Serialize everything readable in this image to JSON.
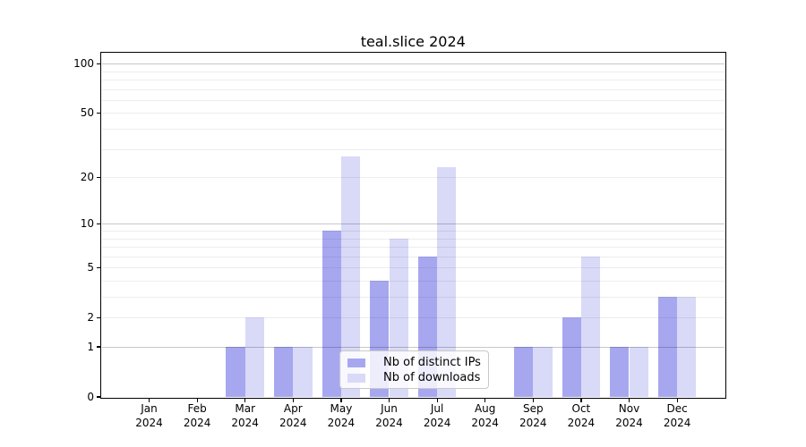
{
  "chart_data": {
    "type": "bar",
    "title": "teal.slice 2024",
    "categories": [
      "Jan",
      "Feb",
      "Mar",
      "Apr",
      "May",
      "Jun",
      "Jul",
      "Aug",
      "Sep",
      "Oct",
      "Nov",
      "Dec"
    ],
    "category_year": "2024",
    "series": [
      {
        "name": "Nb of distinct IPs",
        "color": "#a7a7f0",
        "values": [
          0,
          0,
          1,
          1,
          9,
          4,
          6,
          0,
          1,
          2,
          1,
          3
        ]
      },
      {
        "name": "Nb of downloads",
        "color": "#d9d9f8",
        "values": [
          0,
          0,
          2,
          1,
          27,
          8,
          23,
          0,
          1,
          6,
          1,
          3
        ]
      }
    ],
    "y_axis": {
      "scale": "log10(1+value)",
      "tick_values": [
        0,
        1,
        2,
        5,
        10,
        20,
        50,
        100
      ],
      "major_grid_values": [
        1,
        10,
        100
      ],
      "minor_grid_values": [
        2,
        3,
        4,
        5,
        6,
        7,
        8,
        9,
        20,
        30,
        40,
        50,
        60,
        70,
        80,
        90
      ],
      "ylim": [
        0,
        117
      ]
    },
    "legend": {
      "position": "lower center"
    },
    "grid": "on"
  },
  "colors": {
    "minor_grid": "rgba(0,0,0,0.07)",
    "major_grid": "rgba(0,0,0,0.22)",
    "spine": "#000000"
  }
}
